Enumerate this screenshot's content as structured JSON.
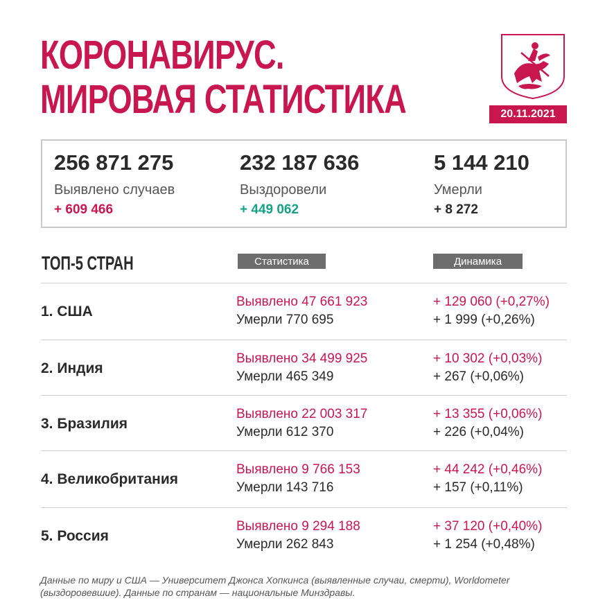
{
  "header": {
    "title_line1": "КОРОНАВИРУС.",
    "title_line2": "МИРОВАЯ СТАТИСТИКА",
    "date": "20.11.2021",
    "accent_color": "#c8174f",
    "crest_icon": "moscow-coat-of-arms-icon"
  },
  "summary": {
    "cases": {
      "value": "256 871 275",
      "label": "Выявлено случаев",
      "delta": "+ 609 466"
    },
    "recovered": {
      "value": "232 187 636",
      "label": "Выздоровели",
      "delta": "+ 449 062"
    },
    "deaths": {
      "value": "5 144 210",
      "label": "Умерли",
      "delta": "+ 8 272"
    }
  },
  "top5": {
    "title": "ТОП-5 СТРАН",
    "col_stats": "Статистика",
    "col_dynamics": "Динамика",
    "rows": [
      {
        "country": "1. США",
        "cases": "Выявлено 47 661 923",
        "deaths": "Умерли 770 695",
        "cases_delta": "+ 129 060 (+0,27%)",
        "deaths_delta": "+ 1 999 (+0,26%)"
      },
      {
        "country": "2. Индия",
        "cases": "Выявлено 34 499 925",
        "deaths": "Умерли 465 349",
        "cases_delta": "+ 10 302 (+0,03%)",
        "deaths_delta": "+ 267 (+0,06%)"
      },
      {
        "country": "3. Бразилия",
        "cases": "Выявлено 22 003 317",
        "deaths": "Умерли 612 370",
        "cases_delta": "+ 13 355 (+0,06%)",
        "deaths_delta": "+ 226 (+0,04%)"
      },
      {
        "country": "4. Великобритания",
        "cases": "Выявлено 9 766 153",
        "deaths": "Умерли 143 716",
        "cases_delta": "+ 44 242 (+0,46%)",
        "deaths_delta": "+ 157 (+0,11%)"
      },
      {
        "country": "5. Россия",
        "cases": "Выявлено 9 294 188",
        "deaths": "Умерли 262 843",
        "cases_delta": "+ 37 120 (+0,40%)",
        "deaths_delta": "+ 1 254 (+0,48%)"
      }
    ]
  },
  "footnote": "Данные по миру и США — Университет Джонса Хопкинса (выявленные случаи, смерти), Worldometer (выздоровевшие). Данные по странам — национальные Минздравы."
}
